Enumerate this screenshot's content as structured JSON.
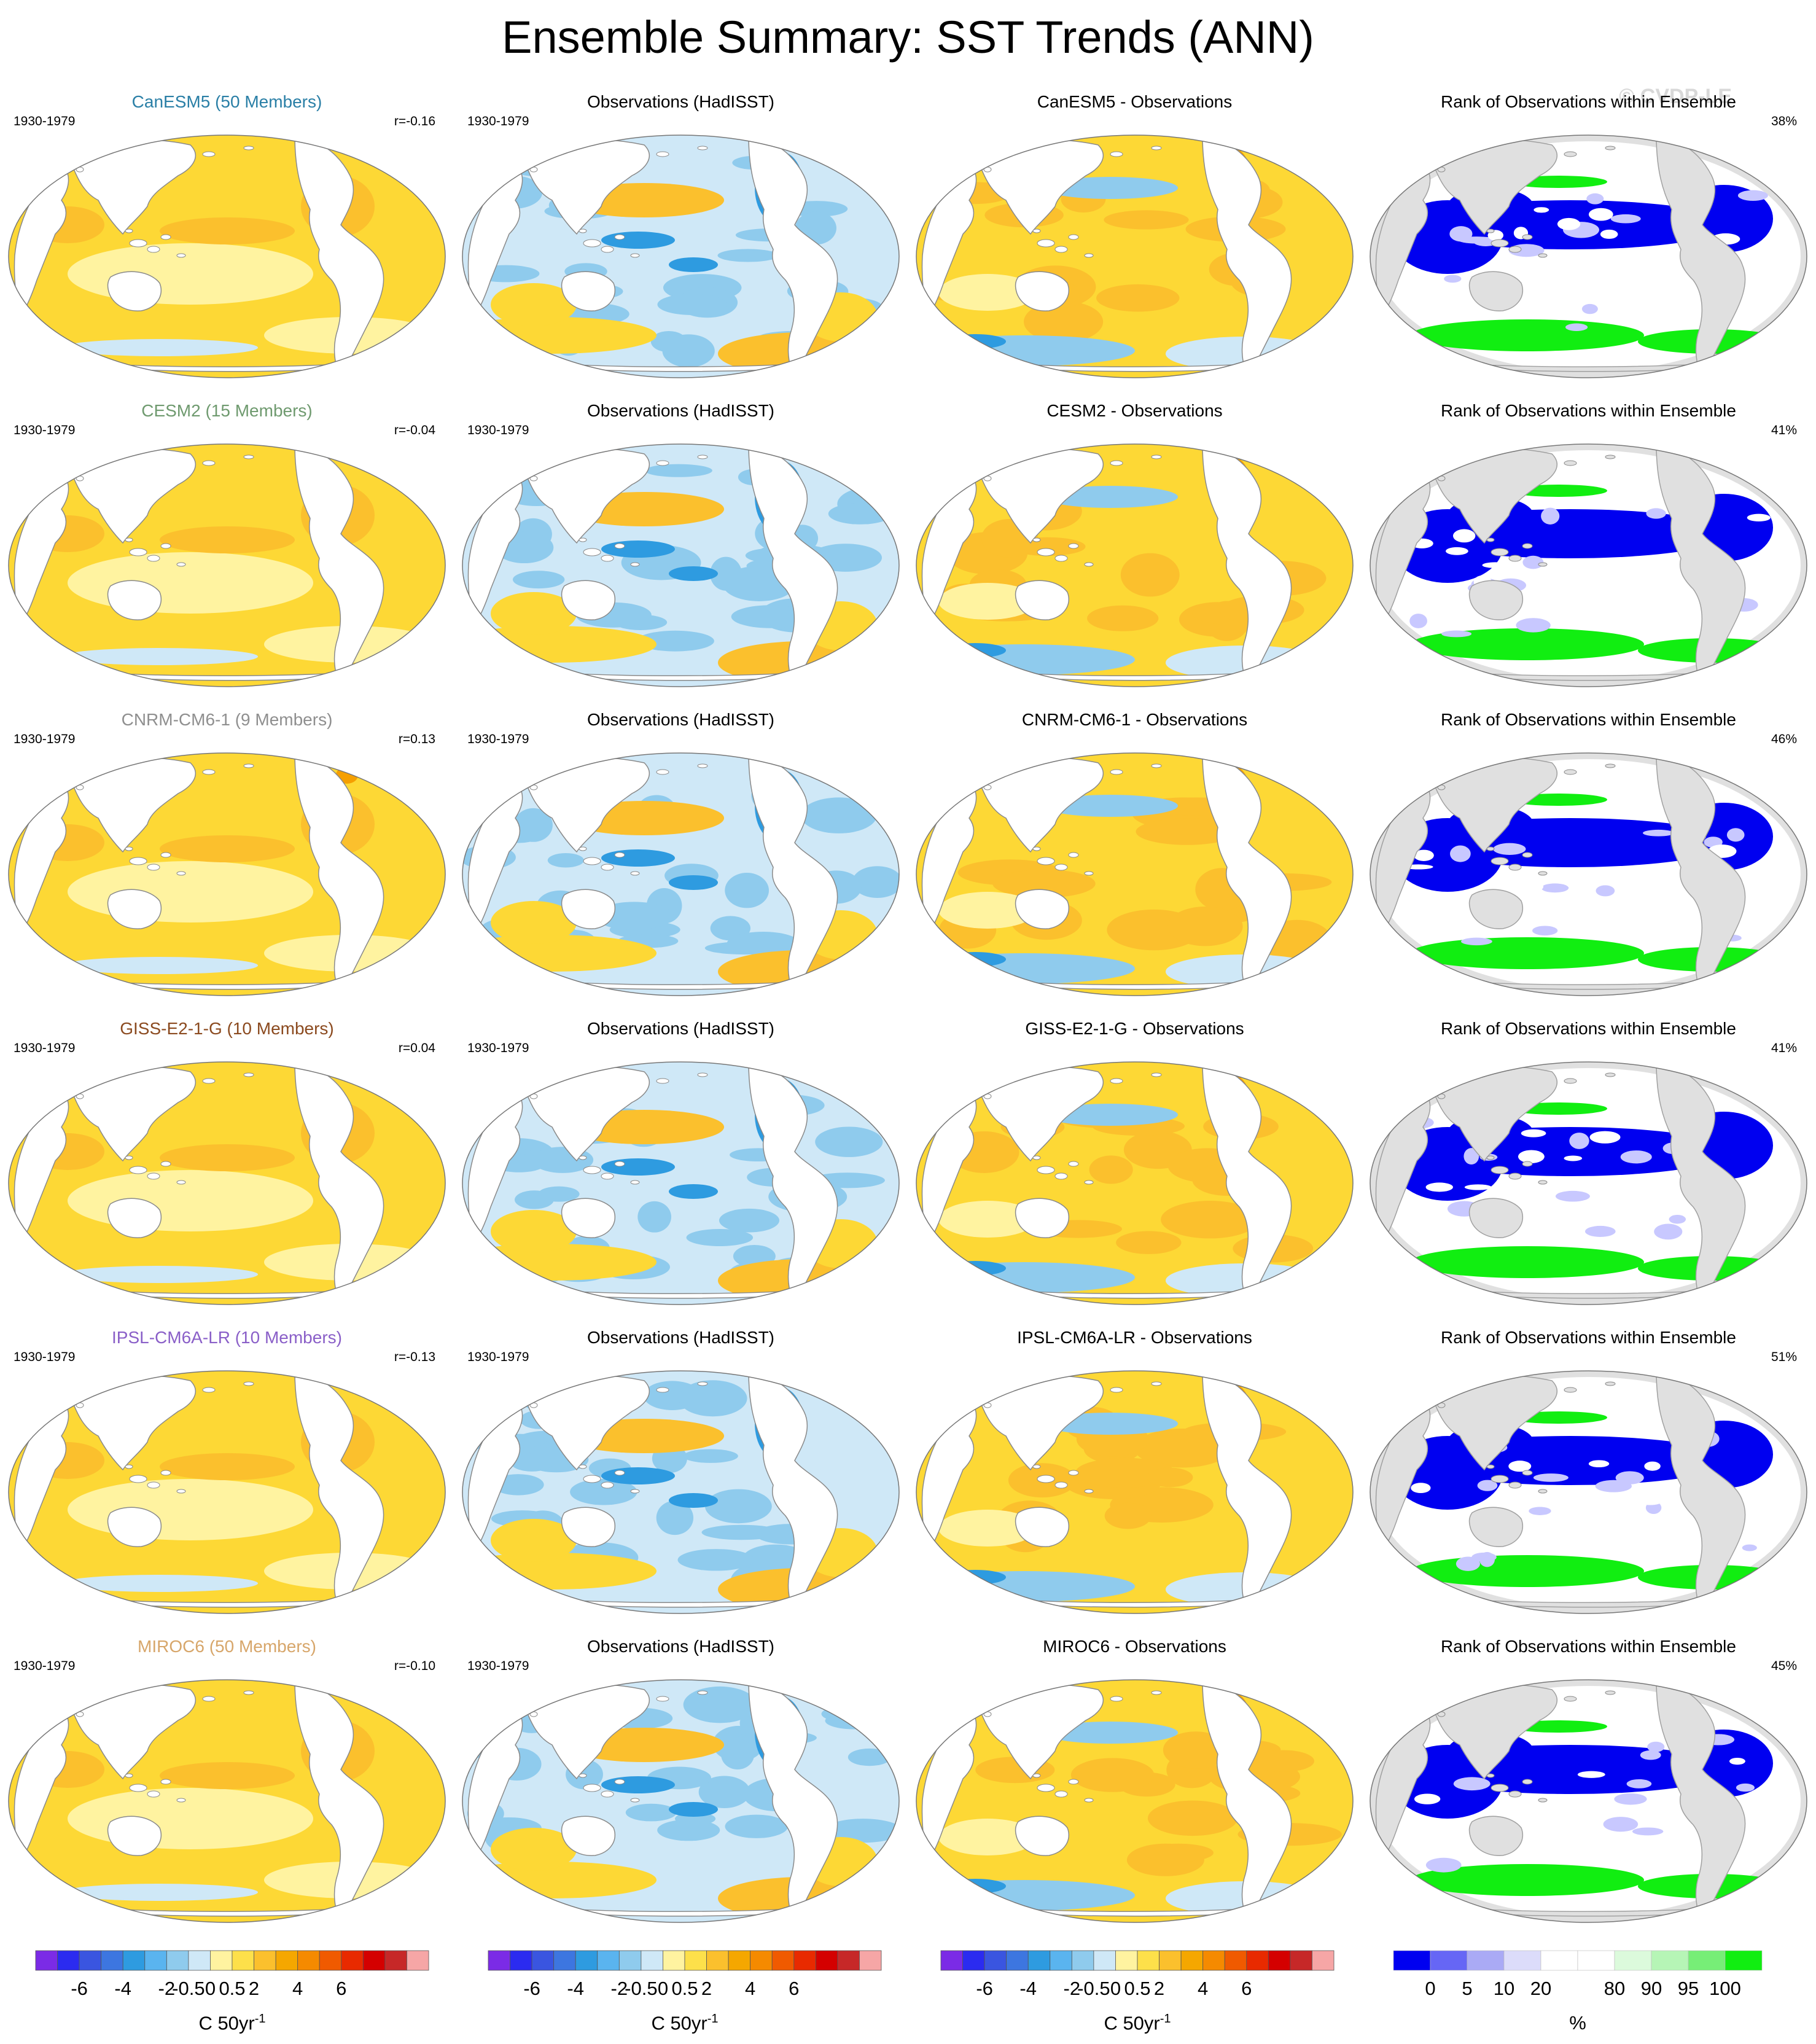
{
  "title": "Ensemble Summary: SST Trends (ANN)",
  "watermark": "© CVDP-LE",
  "colors": {
    "land_white": "#ffffff",
    "land_gray": "#e0e0e0",
    "coast": "#8a8a8a",
    "warm_light": "#fff3a0",
    "warm_mid": "#fdd835",
    "warm_strong": "#fbc02d",
    "warm_hot": "#f59f00",
    "cool_light": "#cfe8f7",
    "cool_mid": "#8fcbed",
    "cool_strong": "#2e9be0",
    "rank_blue": "#0000f0",
    "rank_green": "#11ee11",
    "rank_lightblue": "#c8c8ff"
  },
  "column_titles": {
    "observations": "Observations (HadISST)",
    "rank": "Rank of Observations within Ensemble"
  },
  "rows": [
    {
      "ensemble_title": "CanESM5 (50 Members)",
      "title_color": "#2a7fa6",
      "period": "1930-1979",
      "r": "r=-0.16",
      "diff_title": "CanESM5 - Observations",
      "rank_pct": "38%"
    },
    {
      "ensemble_title": "CESM2 (15 Members)",
      "title_color": "#6f9a6f",
      "period": "1930-1979",
      "r": "r=-0.04",
      "diff_title": "CESM2 - Observations",
      "rank_pct": "41%"
    },
    {
      "ensemble_title": "CNRM-CM6-1 (9 Members)",
      "title_color": "#8f8f8f",
      "period": "1930-1979",
      "r": "r=0.13",
      "diff_title": "CNRM-CM6-1 - Observations",
      "rank_pct": "46%"
    },
    {
      "ensemble_title": "GISS-E2-1-G (10 Members)",
      "title_color": "#8b4a1f",
      "period": "1930-1979",
      "r": "r=0.04",
      "diff_title": "GISS-E2-1-G - Observations",
      "rank_pct": "41%"
    },
    {
      "ensemble_title": "IPSL-CM6A-LR (10 Members)",
      "title_color": "#8a5fc8",
      "period": "1930-1979",
      "r": "r=-0.13",
      "diff_title": "IPSL-CM6A-LR - Observations",
      "rank_pct": "51%"
    },
    {
      "ensemble_title": "MIROC6 (50 Members)",
      "title_color": "#d7a66a",
      "period": "1930-1979",
      "r": "r=-0.10",
      "diff_title": "MIROC6 - Observations",
      "rank_pct": "45%"
    }
  ],
  "colorbars": {
    "trend": {
      "unit_prefix": "C 50yr",
      "unit_sup": "-1",
      "colors": [
        "#7b2be6",
        "#2b2bf0",
        "#3a55e0",
        "#3d76e0",
        "#2e9be0",
        "#5ab4ef",
        "#8fcbed",
        "#cfe8f7",
        "#fff3a0",
        "#fde04a",
        "#fbc02d",
        "#f5a700",
        "#f58a00",
        "#f05a00",
        "#e82a00",
        "#d40000",
        "#c62828",
        "#f6a6a6"
      ],
      "tick_labels": [
        "-6",
        "-4",
        "-2",
        "-0.5",
        "0",
        "0.5",
        "2",
        "4",
        "6"
      ]
    },
    "rank": {
      "unit": "%",
      "colors": [
        "#0000f0",
        "#6666f5",
        "#aaaaf5",
        "#dcdcfa",
        "#ffffff",
        "#ffffff",
        "#dcfadc",
        "#b6f5b6",
        "#77ee77",
        "#11ee11"
      ],
      "tick_labels": [
        "0",
        "5",
        "10",
        "20",
        "80",
        "90",
        "95",
        "100"
      ]
    }
  }
}
